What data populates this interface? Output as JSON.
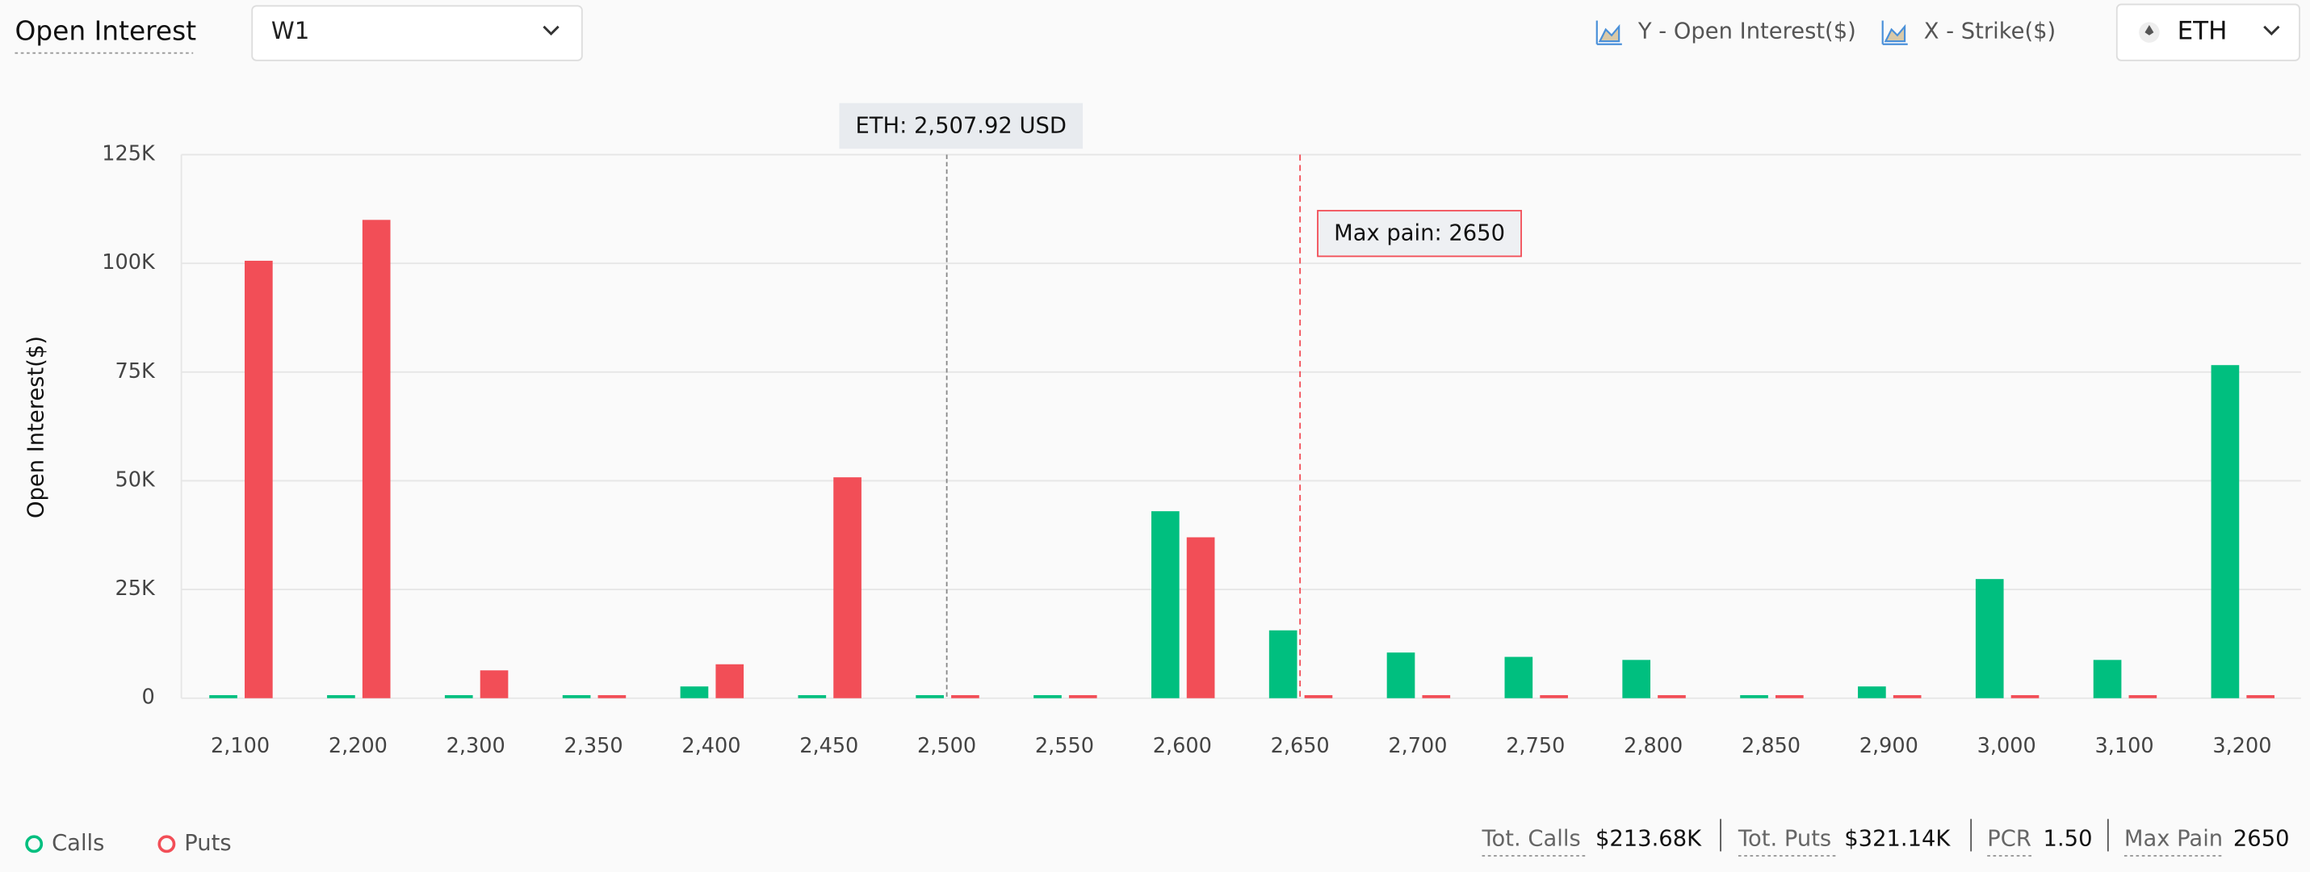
{
  "header": {
    "title": "Open Interest",
    "period": "W1",
    "y_legend": "Y - Open Interest($)",
    "x_legend": "X - Strike($)",
    "asset": "ETH"
  },
  "chart_data": {
    "type": "bar",
    "y_label": "Open Interest($)",
    "categories": [
      "2,100",
      "2,200",
      "2,300",
      "2,350",
      "2,400",
      "2,450",
      "2,500",
      "2,550",
      "2,600",
      "2,650",
      "2,700",
      "2,750",
      "2,800",
      "2,850",
      "2,900",
      "3,000",
      "3,100",
      "3,200"
    ],
    "series": [
      {
        "name": "Calls",
        "color": "#00bf7f",
        "values": [
          700,
          700,
          700,
          700,
          2700,
          700,
          700,
          700,
          43000,
          15600,
          10500,
          9500,
          8800,
          700,
          2700,
          27400,
          8800,
          76600
        ]
      },
      {
        "name": "Puts",
        "color": "#f24e57",
        "values": [
          100600,
          110000,
          6400,
          700,
          7800,
          50800,
          700,
          700,
          37000,
          700,
          700,
          700,
          700,
          700,
          700,
          700,
          700,
          700
        ]
      }
    ],
    "ylim": [
      0,
      125000
    ],
    "yticks": [
      0,
      {
        "value": 25000,
        "label": "25K"
      },
      {
        "value": 50000,
        "label": "50K"
      },
      {
        "value": 75000,
        "label": "75K"
      },
      {
        "value": 100000,
        "label": "100K"
      },
      {
        "value": 125000,
        "label": "125K"
      }
    ],
    "grid": true,
    "spot_line": {
      "label": "ETH: 2,507.92 USD",
      "category": "2,500"
    },
    "max_pain_line": {
      "label": "Max pain: 2650",
      "category": "2,650"
    }
  },
  "footer": {
    "tot_calls_label": "Tot. Calls",
    "tot_calls": "$213.68K",
    "tot_puts_label": "Tot. Puts",
    "tot_puts": "$321.14K",
    "pcr_label": "PCR",
    "pcr": "1.50",
    "max_pain_label": "Max Pain",
    "max_pain": "2650"
  }
}
